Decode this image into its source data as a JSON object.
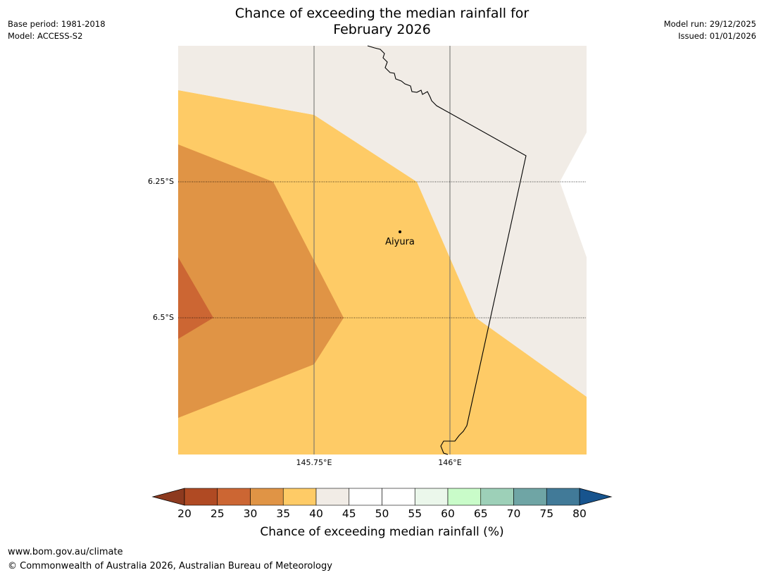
{
  "title": "Chance of exceeding the median rainfall for\nFebruary 2026",
  "meta_left": {
    "base_period": "Base period: 1981-2018",
    "model": "Model: ACCESS-S2"
  },
  "meta_right": {
    "model_run": "Model run: 29/12/2025",
    "issued": "Issued: 01/01/2026"
  },
  "map": {
    "lat_labels": [
      "6.25°S",
      "6.5°S"
    ],
    "lon_labels": [
      "145.75°E",
      "146°E"
    ],
    "place": {
      "name": "Aiyura",
      "marker_icon": "location-dot-icon"
    },
    "region_colors": {
      "20-25": "#b04a23",
      "25-30": "#cc6633",
      "30-35": "#e09445",
      "35-40": "#fecb66",
      "40-45": "#f1ece6"
    }
  },
  "colorbar": {
    "label": "Chance of exceeding median rainfall (%)",
    "ticks": [
      "20",
      "25",
      "30",
      "35",
      "40",
      "45",
      "50",
      "55",
      "60",
      "65",
      "70",
      "75",
      "80"
    ],
    "under_color": "#8d3a1f",
    "over_color": "#17548e",
    "colors": [
      "#b04a23",
      "#cc6633",
      "#e09445",
      "#fecb66",
      "#f1ece6",
      "#ffffff",
      "#ffffff",
      "#ebf7eb",
      "#c9fcc9",
      "#9dd0b8",
      "#6fa5a5",
      "#417a98"
    ]
  },
  "footer": {
    "url": "www.bom.gov.au/climate",
    "copyright": "© Commonwealth of Australia 2026, Australian Bureau of Meteorology"
  }
}
